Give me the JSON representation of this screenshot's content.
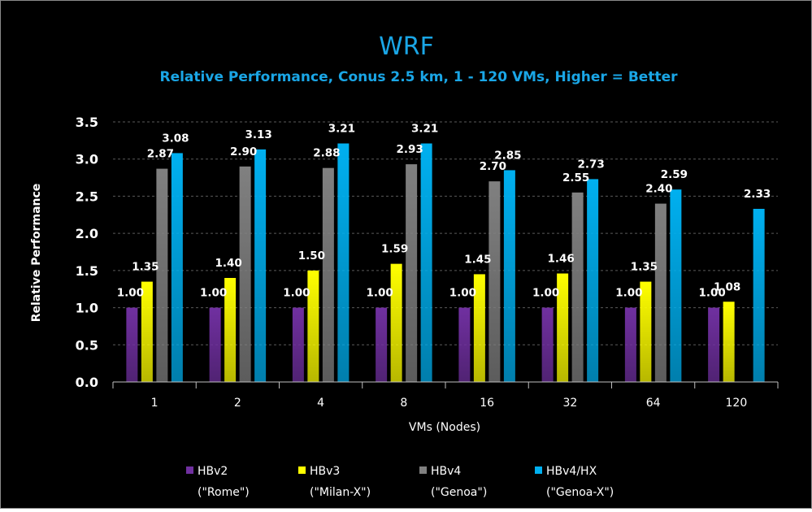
{
  "chart_data": {
    "type": "bar",
    "title": "WRF",
    "subtitle": "Relative Performance, Conus 2.5 km, 1 - 120 VMs, Higher = Better",
    "xlabel": "VMs (Nodes)",
    "ylabel": "Relative Performance",
    "ylim": [
      0,
      3.5
    ],
    "yticks": [
      "0.0",
      "0.5",
      "1.0",
      "1.5",
      "2.0",
      "2.5",
      "3.0",
      "3.5"
    ],
    "grid": true,
    "legend_position": "bottom",
    "categories": [
      "1",
      "2",
      "4",
      "8",
      "16",
      "32",
      "64",
      "120"
    ],
    "series": [
      {
        "name": "HBv2",
        "name_line2": "(\"Rome\")",
        "color": "#7030a0",
        "values": [
          1.0,
          1.0,
          1.0,
          1.0,
          1.0,
          1.0,
          1.0,
          1.0
        ],
        "labels": [
          "1.00",
          "1.00",
          "1.00",
          "1.00",
          "1.00",
          "1.00",
          "1.00",
          "1.00"
        ]
      },
      {
        "name": "HBv3",
        "name_line2": "(\"Milan-X\")",
        "color": "#ffff00",
        "values": [
          1.35,
          1.4,
          1.5,
          1.59,
          1.45,
          1.46,
          1.35,
          1.08
        ],
        "labels": [
          "1.35",
          "1.40",
          "1.50",
          "1.59",
          "1.45",
          "1.46",
          "1.35",
          "1.08"
        ]
      },
      {
        "name": "HBv4",
        "name_line2": "(\"Genoa\")",
        "color": "#808080",
        "values": [
          2.87,
          2.9,
          2.88,
          2.93,
          2.7,
          2.55,
          2.4,
          null
        ],
        "labels": [
          "2.87",
          "2.90",
          "2.88",
          "2.93",
          "2.70",
          "2.55",
          "2.40",
          null
        ]
      },
      {
        "name": "HBv4/HX",
        "name_line2": "(\"Genoa-X\")",
        "color": "#00b0f0",
        "values": [
          3.08,
          3.13,
          3.21,
          3.21,
          2.85,
          2.73,
          2.59,
          2.33
        ],
        "labels": [
          "3.08",
          "3.13",
          "3.21",
          "3.21",
          "2.85",
          "2.73",
          "2.59",
          "2.33"
        ]
      }
    ]
  }
}
